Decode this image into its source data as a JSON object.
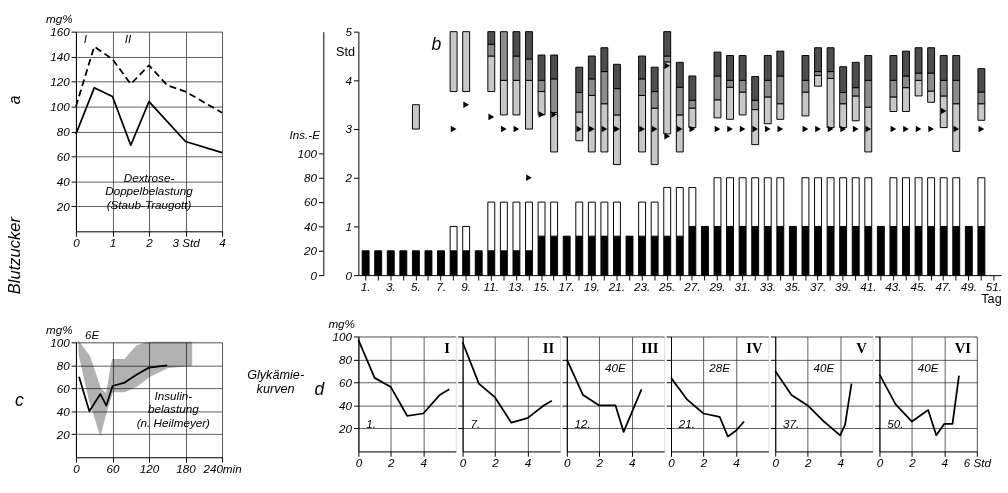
{
  "chart_data": [
    {
      "type": "line",
      "ylabel": "mg%",
      "xlim": [
        0,
        4
      ],
      "ylim": [
        0,
        160
      ],
      "xticks": [
        0,
        1,
        2,
        {
          "value": 3,
          "label": "3 Std"
        },
        4
      ],
      "yticks": [
        20,
        40,
        60,
        80,
        100,
        120,
        140,
        160
      ],
      "grid": true,
      "x": [
        0,
        0.5,
        1,
        1.5,
        2,
        2.5,
        3,
        4
      ],
      "series": [
        {
          "color": "#000000",
          "line_style": "dashed",
          "values": [
            100,
            148,
            138,
            118,
            133,
            117,
            112,
            95
          ]
        },
        {
          "color": "#000000",
          "line_style": "solid",
          "x": [
            0,
            0.5,
            1,
            1.5,
            2,
            3,
            4
          ],
          "values": [
            78,
            115,
            108,
            69,
            104,
            72,
            63
          ]
        }
      ],
      "annotations": [
        "Dextrose-\nDoppelbelastung\n(Staub-Traugott)",
        "Blutzucker",
        "a",
        "I",
        "II"
      ]
    },
    {
      "type": "bar",
      "ylabel": "Std",
      "y2label": "Ins.-E",
      "xlabel": "Tag",
      "stacked": true,
      "grid": false,
      "legend": false,
      "categories": [
        "1.",
        null,
        "3.",
        null,
        "5.",
        null,
        "7.",
        null,
        "9.",
        null,
        "11.",
        null,
        "13.",
        null,
        "15.",
        null,
        "17.",
        null,
        "19.",
        null,
        "21.",
        null,
        "23.",
        null,
        "25.",
        null,
        "27.",
        null,
        "29.",
        null,
        "31.",
        null,
        "33.",
        null,
        "35.",
        null,
        "37.",
        null,
        "39.",
        null,
        "41.",
        null,
        "43.",
        null,
        "45.",
        null,
        "47.",
        null,
        "49.",
        null,
        "51."
      ],
      "ylim": [
        0,
        5
      ],
      "yticks": [
        0,
        1,
        2,
        3,
        4,
        5
      ],
      "y2lim": [
        0,
        200
      ],
      "y2ticks": [
        0,
        20,
        40,
        60,
        80,
        100
      ],
      "series": [
        {
          "color": "#c8c8c8",
          "base": [
            null,
            null,
            null,
            null,
            3.0,
            null,
            null,
            3.77,
            3.77,
            null,
            3.77,
            3.29,
            3.29,
            3.0,
            3.29,
            2.53,
            null,
            2.76,
            2.53,
            2.53,
            2.27,
            null,
            2.53,
            2.27,
            2.9,
            2.53,
            3.03,
            null,
            3.23,
            3.2,
            3.29,
            2.68,
            3.11,
            3.2,
            null,
            3.27,
            3.88,
            3.03,
            3.03,
            3.17,
            2.53,
            null,
            3.36,
            3.36,
            3.68,
            3.55,
            3.03,
            2.54,
            null,
            3.18,
            null
          ],
          "values": [
            null,
            null,
            null,
            null,
            0.5,
            null,
            null,
            1.23,
            1.23,
            null,
            0.73,
            0.71,
            0.71,
            1.0,
            0.48,
            0.81,
            null,
            0.59,
            1.16,
            0.99,
            1.02,
            null,
            1.16,
            1.16,
            1.48,
            0.76,
            0.4,
            null,
            0.37,
            0.66,
            0.47,
            0.72,
            0.55,
            0.32,
            null,
            0.49,
            0.22,
            1.01,
            0.49,
            0.51,
            0.92,
            null,
            0.3,
            0.49,
            0.32,
            0.23,
            0.65,
            0.98,
            null,
            0.34,
            null
          ]
        },
        {
          "color": "#8c8c8c",
          "base": [
            null,
            null,
            null,
            null,
            null,
            null,
            null,
            null,
            null,
            null,
            4.5,
            4.0,
            4.0,
            4.0,
            3.77,
            3.34,
            null,
            3.35,
            3.69,
            3.52,
            3.29,
            null,
            3.69,
            3.43,
            4.38,
            3.29,
            3.43,
            null,
            3.6,
            3.86,
            3.76,
            3.4,
            3.66,
            3.52,
            null,
            3.76,
            4.1,
            4.04,
            3.52,
            3.68,
            3.45,
            null,
            3.66,
            3.85,
            4.0,
            3.78,
            3.68,
            3.52,
            null,
            3.52,
            null
          ],
          "values": [
            null,
            null,
            null,
            null,
            null,
            null,
            null,
            null,
            null,
            null,
            0.24,
            1.0,
            0.5,
            0.44,
            0.23,
            0.69,
            null,
            0.4,
            0.34,
            0.66,
            0.54,
            null,
            0.34,
            0.34,
            0.12,
            0.57,
            0.16,
            null,
            0.49,
            0.14,
            0.24,
            0.19,
            0.34,
            0.57,
            null,
            0.24,
            0.08,
            0.14,
            0.23,
            0.17,
            0.55,
            null,
            0.34,
            0.24,
            0.15,
            0.37,
            0.32,
            0.48,
            null,
            0.24,
            null
          ]
        },
        {
          "color": "#4d4d4d",
          "base": [
            null,
            null,
            null,
            null,
            null,
            null,
            null,
            null,
            null,
            null,
            4.74,
            null,
            4.5,
            4.44,
            4.0,
            4.03,
            null,
            3.75,
            4.03,
            4.18,
            3.83,
            null,
            4.03,
            3.77,
            4.5,
            3.86,
            3.59,
            null,
            4.09,
            4.0,
            4.0,
            3.59,
            4.0,
            4.09,
            null,
            4.0,
            4.18,
            4.18,
            3.75,
            3.85,
            4.0,
            null,
            4.0,
            4.09,
            4.15,
            4.15,
            4.0,
            4.0,
            null,
            3.76,
            null
          ],
          "values": [
            null,
            null,
            null,
            null,
            null,
            null,
            null,
            null,
            null,
            null,
            0.26,
            null,
            0.5,
            0.56,
            0.52,
            0.49,
            null,
            0.52,
            0.47,
            0.49,
            0.5,
            null,
            0.47,
            0.5,
            0.5,
            0.51,
            0.5,
            null,
            0.49,
            0.51,
            0.51,
            0.49,
            0.51,
            0.51,
            null,
            0.51,
            0.49,
            0.49,
            0.53,
            0.52,
            0.51,
            null,
            0.51,
            0.51,
            0.52,
            0.52,
            0.51,
            0.51,
            null,
            0.48,
            null
          ]
        },
        {
          "type": "scatter",
          "marker": "triangle",
          "color": "#000000",
          "values": [
            null,
            null,
            null,
            null,
            null,
            null,
            null,
            3.0,
            3.5,
            null,
            3.25,
            3.0,
            3.0,
            2.0,
            3.3,
            3.3,
            null,
            3.0,
            3.0,
            3.0,
            3.0,
            null,
            3.0,
            3.0,
            2.85,
            3.0,
            3.0,
            null,
            3.0,
            3.0,
            3.0,
            3.0,
            3.0,
            3.0,
            null,
            3.0,
            3.0,
            3.0,
            3.0,
            3.0,
            3.0,
            null,
            3.0,
            3.0,
            3.0,
            3.0,
            3.37,
            3.0,
            null,
            3.0,
            null
          ]
        },
        {
          "type": "scatter",
          "marker": "triangle",
          "color": "#000000",
          "values": [
            null,
            null,
            null,
            null,
            null,
            null,
            null,
            null,
            null,
            null,
            null,
            null,
            null,
            null,
            null,
            null,
            null,
            null,
            null,
            null,
            null,
            null,
            null,
            null,
            4.3,
            null,
            null,
            null,
            null,
            null,
            null,
            null,
            null,
            null,
            null,
            null,
            null,
            null,
            null,
            null,
            null,
            null,
            null,
            null,
            null,
            null,
            null,
            null,
            null,
            null,
            null
          ]
        },
        {
          "axis": "y2",
          "color": "#000000",
          "values": [
            20,
            20,
            20,
            20,
            20,
            20,
            20,
            20,
            20,
            20,
            20,
            20,
            20,
            20,
            32,
            32,
            32,
            32,
            32,
            32,
            32,
            32,
            32,
            32,
            32,
            32,
            40,
            40,
            40,
            40,
            40,
            40,
            40,
            40,
            40,
            40,
            40,
            40,
            40,
            40,
            40,
            40,
            40,
            40,
            40,
            40,
            40,
            40,
            40,
            40,
            null
          ]
        },
        {
          "axis": "y2",
          "color": "#ffffff",
          "values": [
            null,
            null,
            null,
            null,
            null,
            null,
            null,
            20,
            20,
            null,
            40,
            40,
            40,
            40,
            28,
            28,
            null,
            28,
            28,
            28,
            28,
            null,
            28,
            28,
            40,
            40,
            32,
            null,
            40,
            40,
            40,
            40,
            40,
            40,
            null,
            40,
            40,
            40,
            40,
            40,
            40,
            null,
            40,
            40,
            40,
            40,
            40,
            40,
            null,
            40,
            null
          ]
        }
      ],
      "annotations": [
        "b"
      ]
    },
    {
      "type": "line",
      "ylabel": "mg%",
      "xlim": [
        0,
        240
      ],
      "ylim": [
        0,
        100
      ],
      "xticks": [
        0,
        60,
        120,
        180,
        {
          "value": 240,
          "label": "240min"
        }
      ],
      "yticks": [
        20,
        40,
        60,
        80,
        100
      ],
      "grid": true,
      "series": [
        {
          "color": "#000000",
          "x": [
            5,
            22,
            40,
            50,
            60,
            80,
            100,
            120,
            150,
            190
          ],
          "values": [
            70,
            40,
            55,
            45,
            62,
            65,
            72,
            78,
            80,
            null
          ],
          "lower": [
            90,
            50,
            20,
            40,
            57,
            57,
            62,
            70,
            78,
            80
          ],
          "upper": [
            100,
            88,
            60,
            55,
            85,
            85,
            97,
            100,
            100,
            100
          ]
        }
      ],
      "annotations": [
        "Insulin-\nbelastung\n(n. Heilmeyer)",
        "c",
        {
          "text": "6E",
          "x": 10,
          "y": 100
        }
      ]
    },
    {
      "type": "line",
      "title": "I",
      "ylabel": "mg%",
      "xlim": [
        0,
        6
      ],
      "ylim": [
        0,
        100
      ],
      "xticks": [
        0,
        2,
        4
      ],
      "yticks": [
        20,
        40,
        60,
        80,
        100
      ],
      "grid": true,
      "series": [
        {
          "color": "#000000",
          "x": [
            0,
            1,
            2,
            3,
            4,
            5,
            5.6
          ],
          "values": [
            97,
            64,
            56,
            31,
            33,
            49,
            54
          ]
        }
      ],
      "annotations": [
        "Glykämie-\nkurven",
        "d",
        "1."
      ]
    },
    {
      "type": "line",
      "title": "II",
      "xlim": [
        0,
        6
      ],
      "ylim": [
        0,
        100
      ],
      "xticks": [
        0,
        2,
        4
      ],
      "yticks": [
        20,
        40,
        60,
        80,
        100
      ],
      "grid": true,
      "tick_labels": "x",
      "series": [
        {
          "color": "#000000",
          "x": [
            0,
            1,
            2,
            3,
            4,
            5,
            5.5
          ],
          "values": [
            95,
            59,
            47,
            25,
            29,
            40,
            44
          ]
        }
      ],
      "annotations": [
        "7."
      ]
    },
    {
      "type": "line",
      "title": "III",
      "xlim": [
        0,
        6
      ],
      "ylim": [
        0,
        100
      ],
      "xticks": [
        0,
        2,
        4
      ],
      "yticks": [
        20,
        40,
        60,
        80,
        100
      ],
      "grid": true,
      "tick_labels": "x",
      "series": [
        {
          "color": "#000000",
          "x": [
            0,
            1,
            2,
            3,
            3.5,
            4.6
          ],
          "values": [
            80,
            49,
            40,
            40,
            17,
            54
          ]
        }
      ],
      "annotations": [
        "12.",
        "40E"
      ]
    },
    {
      "type": "line",
      "title": "IV",
      "xlim": [
        0,
        6
      ],
      "ylim": [
        0,
        100
      ],
      "xticks": [
        0,
        2,
        4
      ],
      "yticks": [
        20,
        40,
        60,
        80,
        100
      ],
      "grid": true,
      "tick_labels": "x",
      "series": [
        {
          "color": "#000000",
          "x": [
            0,
            1,
            2,
            3,
            3.5,
            4,
            4.5
          ],
          "values": [
            64,
            45,
            33,
            30,
            13,
            18,
            26
          ]
        }
      ],
      "annotations": [
        "21.",
        "28E"
      ]
    },
    {
      "type": "line",
      "title": "V",
      "xlim": [
        0,
        6
      ],
      "ylim": [
        0,
        100
      ],
      "xticks": [
        0,
        2,
        4
      ],
      "yticks": [
        20,
        40,
        60,
        80,
        100
      ],
      "grid": true,
      "tick_labels": "x",
      "series": [
        {
          "color": "#000000",
          "x": [
            0,
            1,
            2,
            3,
            4,
            4.3,
            4.7
          ],
          "values": [
            70,
            49,
            40,
            26,
            14,
            23,
            59
          ]
        }
      ],
      "annotations": [
        "37.",
        "40E"
      ]
    },
    {
      "type": "line",
      "title": "VI",
      "xlim": [
        0,
        6
      ],
      "ylim": [
        0,
        100
      ],
      "xticks": [
        0,
        2,
        4,
        {
          "value": 6,
          "label": "6 Std"
        }
      ],
      "yticks": [
        20,
        40,
        60,
        80,
        100
      ],
      "grid": true,
      "tick_labels": "x",
      "series": [
        {
          "color": "#000000",
          "x": [
            0,
            1,
            2,
            3,
            3.5,
            4,
            4.5,
            4.9
          ],
          "values": [
            67,
            41,
            26,
            36,
            14,
            24,
            24,
            66
          ]
        }
      ],
      "annotations": [
        "50.",
        "40E"
      ]
    }
  ]
}
